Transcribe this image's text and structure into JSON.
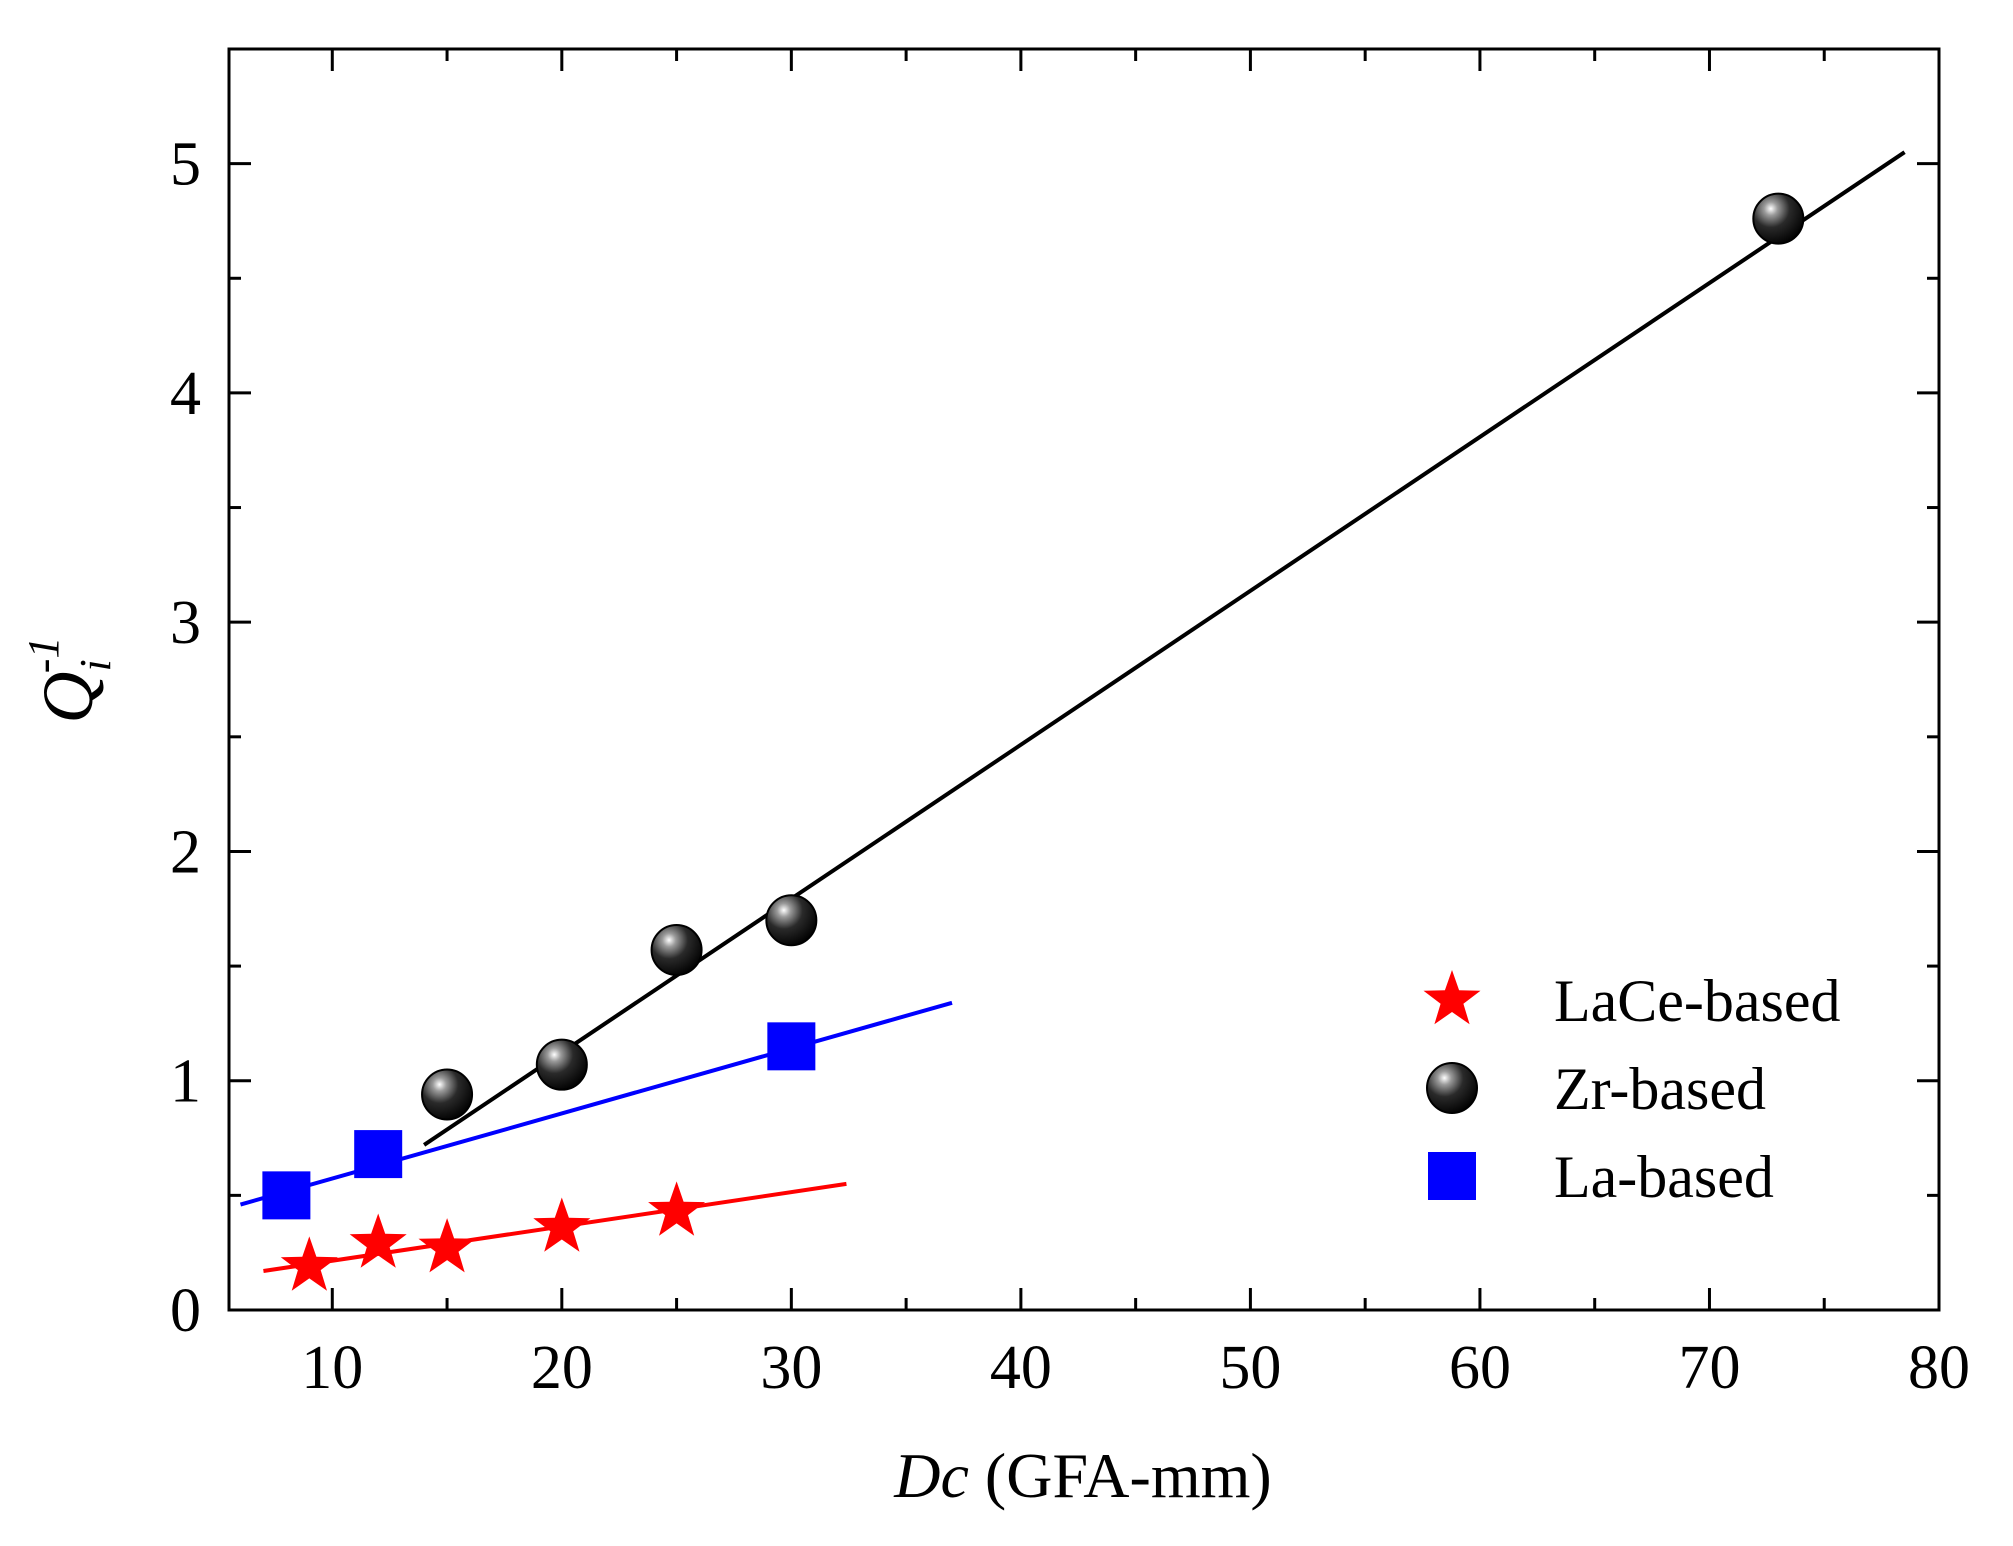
{
  "chart_data": {
    "type": "scatter",
    "title": "",
    "xlabel": {
      "italic": "Dc",
      "rest": " (GFA-mm)"
    },
    "ylabel": {
      "base": "Q",
      "sub": "i",
      "sup": "-1"
    },
    "xlim": [
      5.5,
      80
    ],
    "ylim": [
      0,
      5.5
    ],
    "xticks": [
      10,
      20,
      30,
      40,
      50,
      60,
      70,
      80
    ],
    "xminor": [
      15,
      25,
      35,
      45,
      55,
      65,
      75
    ],
    "yticks": [
      0,
      1,
      2,
      3,
      4,
      5
    ],
    "yminor": [
      0.5,
      1.5,
      2.5,
      3.5,
      4.5
    ],
    "legend_position": "bottom-right",
    "series": [
      {
        "name": "LaCe-based",
        "marker": "star",
        "color": "#ff0000",
        "x": [
          9,
          12,
          15,
          20,
          25
        ],
        "y": [
          0.19,
          0.29,
          0.27,
          0.36,
          0.43
        ],
        "fit": {
          "x": [
            7,
            32.4
          ],
          "y": [
            0.17,
            0.55
          ]
        }
      },
      {
        "name": "Zr-based",
        "marker": "sphere",
        "color": "#000000",
        "x": [
          15,
          20,
          25,
          30,
          73
        ],
        "y": [
          0.94,
          1.07,
          1.57,
          1.7,
          4.76
        ],
        "fit": {
          "x": [
            14,
            78.5
          ],
          "y": [
            0.72,
            5.05
          ]
        }
      },
      {
        "name": "La-based",
        "marker": "square",
        "color": "#0000ff",
        "x": [
          8,
          12,
          30
        ],
        "y": [
          0.5,
          0.68,
          1.15
        ],
        "fit": {
          "x": [
            6,
            37
          ],
          "y": [
            0.46,
            1.34
          ]
        }
      }
    ]
  }
}
